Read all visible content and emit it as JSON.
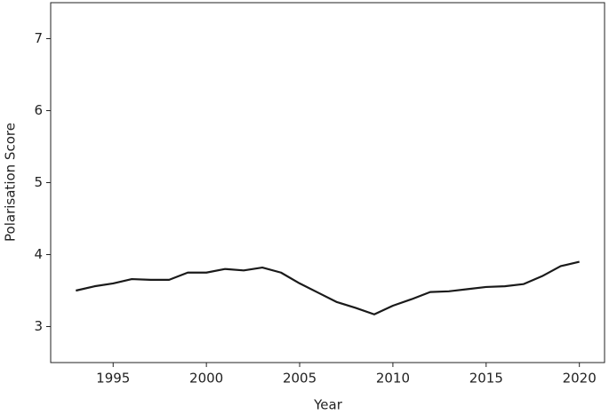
{
  "chart_data": {
    "type": "line",
    "x_label": "Year",
    "y_label": "Polarisation Score",
    "x": [
      1993,
      1994,
      1995,
      1996,
      1997,
      1998,
      1999,
      2000,
      2001,
      2002,
      2003,
      2004,
      2005,
      2006,
      2007,
      2008,
      2009,
      2010,
      2011,
      2012,
      2013,
      2014,
      2015,
      2016,
      2017,
      2018,
      2019,
      2020
    ],
    "series": [
      {
        "color": "#1a1a1a",
        "values": [
          3.5,
          3.56,
          3.6,
          3.66,
          3.65,
          3.65,
          3.75,
          3.75,
          3.8,
          3.78,
          3.82,
          3.75,
          3.6,
          3.47,
          3.34,
          3.26,
          3.17,
          3.29,
          3.38,
          3.48,
          3.49,
          3.52,
          3.55,
          3.56,
          3.59,
          3.7,
          3.84,
          3.9
        ]
      }
    ],
    "xlim": [
      1991.65,
      2021.35
    ],
    "xticks": [
      1995,
      2000,
      2005,
      2010,
      2015,
      2020
    ],
    "ylim": [
      2.5,
      7.5
    ],
    "yticks": [
      3,
      4,
      5,
      6,
      7
    ]
  }
}
